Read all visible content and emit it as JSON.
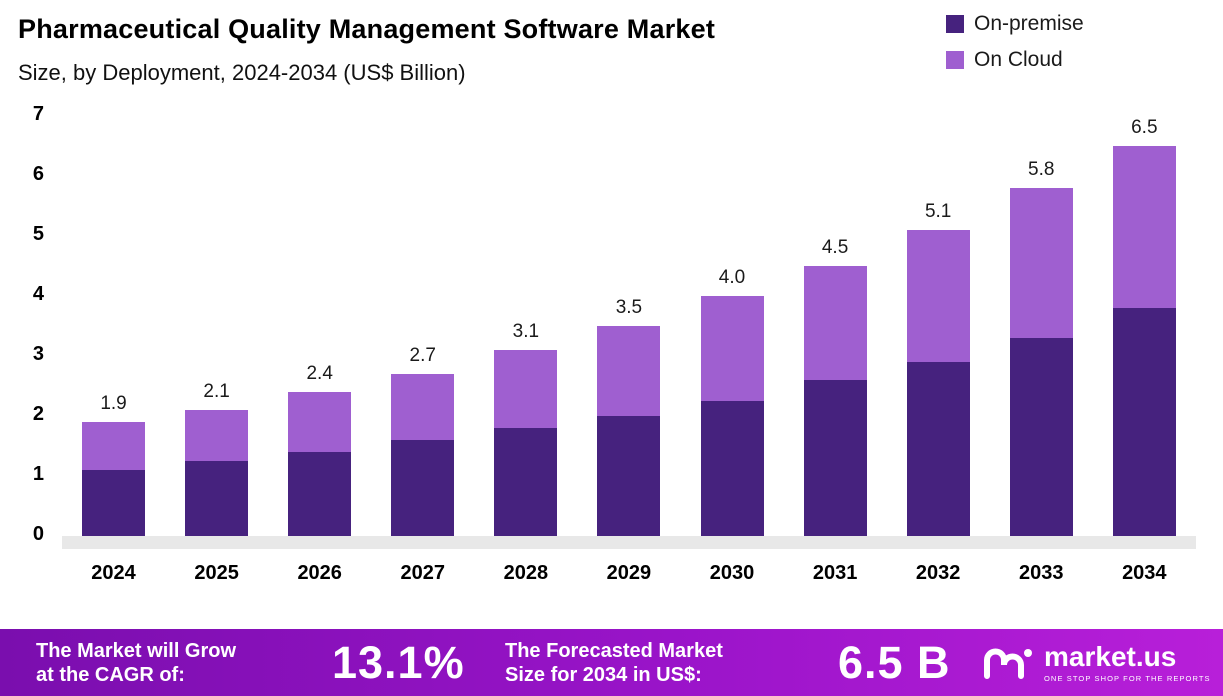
{
  "header": {
    "title": "Pharmaceutical Quality Management Software Market",
    "subtitle": "Size, by Deployment, 2024-2034 (US$ Billion)"
  },
  "legend": [
    {
      "label": "On-premise",
      "color": "#46227e"
    },
    {
      "label": "On Cloud",
      "color": "#9f5fd0"
    }
  ],
  "chart_data": {
    "type": "bar",
    "stacked": true,
    "title": "Pharmaceutical Quality Management Software Market Size, by Deployment, 2024-2034 (US$ Billion)",
    "categories": [
      "2024",
      "2025",
      "2026",
      "2027",
      "2028",
      "2029",
      "2030",
      "2031",
      "2032",
      "2033",
      "2034"
    ],
    "series": [
      {
        "name": "On-premise",
        "color": "#46227e",
        "values": [
          1.1,
          1.25,
          1.4,
          1.6,
          1.8,
          2.0,
          2.25,
          2.6,
          2.9,
          3.3,
          3.8
        ]
      },
      {
        "name": "On Cloud",
        "color": "#9f5fd0",
        "values": [
          0.8,
          0.85,
          1.0,
          1.1,
          1.3,
          1.5,
          1.75,
          1.9,
          2.2,
          2.5,
          2.7
        ]
      }
    ],
    "totals": [
      1.9,
      2.1,
      2.4,
      2.7,
      3.1,
      3.5,
      4.0,
      4.5,
      5.1,
      5.8,
      6.5
    ],
    "ylim": [
      0,
      7
    ],
    "yticks": [
      0,
      1,
      2,
      3,
      4,
      5,
      6,
      7
    ],
    "grid": false,
    "legend_position": "top-right"
  },
  "footer": {
    "cagr_label": "The Market will Grow\nat the CAGR of:",
    "cagr_value": "13.1%",
    "forecast_label": "The Forecasted Market\nSize for 2034 in US$:",
    "forecast_value": "6.5 B",
    "brand": "market.us",
    "brand_tagline": "One Stop Shop For The Reports"
  }
}
